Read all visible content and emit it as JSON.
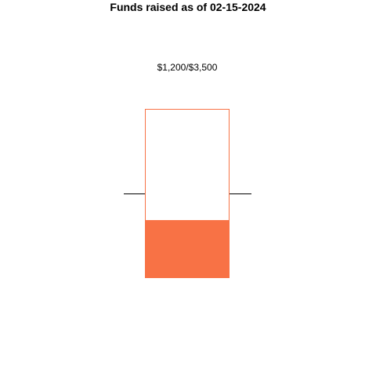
{
  "chart_data": {
    "type": "bar",
    "title": "Funds raised as of 02-15-2024",
    "categories": [
      ""
    ],
    "raised": 1200,
    "goal": 3500,
    "value_label": "$1,200/$3,500",
    "ylim": [
      0,
      3500
    ],
    "marker_value": 1750,
    "colors": {
      "fill": "#f87245",
      "outline": "#f87245",
      "marker": "#000000"
    },
    "grid": false,
    "legend": "none"
  }
}
